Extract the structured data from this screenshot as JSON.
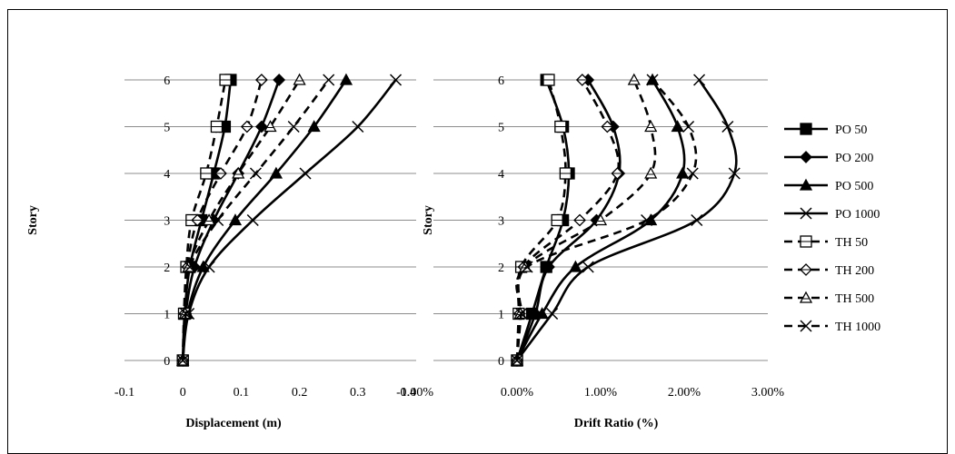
{
  "chart_data": [
    {
      "type": "line",
      "xlabel": "Displacement (m)",
      "ylabel": "Story",
      "xlim": [
        -0.1,
        0.4
      ],
      "ylim": [
        0,
        6
      ],
      "grid": "horizontal",
      "xticks": [
        "-0.1",
        "0",
        "0.1",
        "0.2",
        "0.3",
        "0.4"
      ],
      "yticks": [
        "0",
        "1",
        "2",
        "3",
        "4",
        "5",
        "6"
      ],
      "y": [
        0,
        1,
        2,
        3,
        4,
        5,
        6
      ],
      "series": [
        {
          "name": "PO 50",
          "x": [
            0,
            0.003,
            0.012,
            0.032,
            0.053,
            0.072,
            0.082
          ]
        },
        {
          "name": "PO 200",
          "x": [
            0,
            0.005,
            0.02,
            0.053,
            0.095,
            0.135,
            0.165
          ]
        },
        {
          "name": "PO 500",
          "x": [
            0,
            0.008,
            0.035,
            0.09,
            0.16,
            0.225,
            0.28
          ]
        },
        {
          "name": "PO 1000",
          "x": [
            0,
            0.01,
            0.045,
            0.12,
            0.21,
            0.3,
            0.365
          ]
        },
        {
          "name": "TH 50",
          "x": [
            0,
            0.002,
            0.006,
            0.015,
            0.04,
            0.058,
            0.073
          ]
        },
        {
          "name": "TH 200",
          "x": [
            0,
            0.003,
            0.008,
            0.025,
            0.065,
            0.11,
            0.135
          ]
        },
        {
          "name": "TH 500",
          "x": [
            0,
            0.004,
            0.01,
            0.045,
            0.095,
            0.15,
            0.2
          ]
        },
        {
          "name": "TH 1000",
          "x": [
            0,
            0.005,
            0.012,
            0.06,
            0.125,
            0.19,
            0.25
          ]
        }
      ]
    },
    {
      "type": "line",
      "xlabel": "Drift Ratio (%)",
      "ylabel": "Story",
      "xlim": [
        -1,
        3
      ],
      "ylim": [
        0,
        6
      ],
      "grid": "horizontal",
      "xticks": [
        "-1.00%",
        "0.00%",
        "1.00%",
        "2.00%",
        "3.00%"
      ],
      "yticks": [
        "0",
        "1",
        "2",
        "3",
        "4",
        "5",
        "6"
      ],
      "y": [
        0,
        1,
        2,
        3,
        4,
        5,
        6
      ],
      "series": [
        {
          "name": "PO 50",
          "x": [
            0,
            0.18,
            0.35,
            0.55,
            0.62,
            0.55,
            0.35
          ]
        },
        {
          "name": "PO 200",
          "x": [
            0,
            0.22,
            0.38,
            0.95,
            1.22,
            1.15,
            0.85
          ]
        },
        {
          "name": "PO 500",
          "x": [
            0,
            0.3,
            0.7,
            1.6,
            1.98,
            1.92,
            1.62
          ]
        },
        {
          "name": "PO 1000",
          "x": [
            0,
            0.42,
            0.85,
            2.15,
            2.6,
            2.52,
            2.18
          ]
        },
        {
          "name": "TH 50",
          "x": [
            0,
            0.02,
            0.05,
            0.48,
            0.58,
            0.52,
            0.38
          ]
        },
        {
          "name": "TH 200",
          "x": [
            0,
            0.03,
            0.08,
            0.75,
            1.2,
            1.08,
            0.78
          ]
        },
        {
          "name": "TH 500",
          "x": [
            0,
            0.04,
            0.1,
            1.0,
            1.6,
            1.6,
            1.4
          ]
        },
        {
          "name": "TH 1000",
          "x": [
            0,
            0.05,
            0.12,
            1.55,
            2.1,
            2.05,
            1.62
          ]
        }
      ]
    }
  ],
  "legend": [
    {
      "label": "PO 50",
      "marker": "square-filled",
      "dash": false
    },
    {
      "label": "PO 200",
      "marker": "diamond-filled",
      "dash": false
    },
    {
      "label": "PO 500",
      "marker": "triangle-filled",
      "dash": false
    },
    {
      "label": "PO 1000",
      "marker": "x",
      "dash": false
    },
    {
      "label": "TH 50",
      "marker": "square-open",
      "dash": true
    },
    {
      "label": "TH 200",
      "marker": "diamond-open",
      "dash": true
    },
    {
      "label": "TH 500",
      "marker": "triangle-open",
      "dash": true
    },
    {
      "label": "TH 1000",
      "marker": "x",
      "dash": true
    }
  ],
  "colors": {
    "line": "#000000",
    "grid": "#8c8c8c"
  }
}
